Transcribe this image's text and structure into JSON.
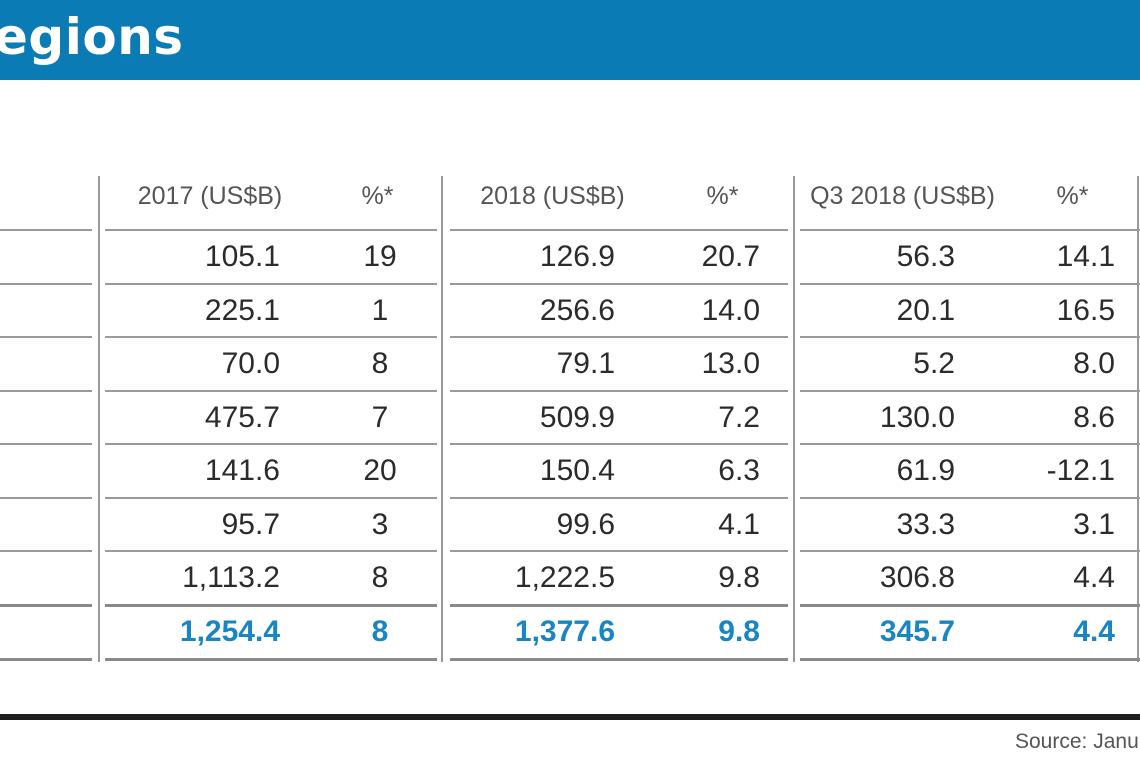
{
  "title": "egions",
  "headers": [
    "2017 (US$B)",
    "%*",
    "2018 (US$B)",
    "%*",
    "Q3 2018 (US$B)",
    "%*"
  ],
  "rows": [
    [
      "105.1",
      "19",
      "126.9",
      "20.7",
      "56.3",
      "14.1"
    ],
    [
      "225.1",
      "1",
      "256.6",
      "14.0",
      "20.1",
      "16.5"
    ],
    [
      "70.0",
      "8",
      "79.1",
      "13.0",
      "5.2",
      "8.0"
    ],
    [
      "475.7",
      "7",
      "509.9",
      "7.2",
      "130.0",
      "8.6"
    ],
    [
      "141.6",
      "20",
      "150.4",
      "6.3",
      "61.9",
      "-12.1"
    ],
    [
      "95.7",
      "3",
      "99.6",
      "4.1",
      "33.3",
      "3.1"
    ],
    [
      "1,113.2",
      "8",
      "1,222.5",
      "9.8",
      "306.8",
      "4.4"
    ]
  ],
  "total": [
    "1,254.4",
    "8",
    "1,377.6",
    "9.8",
    "345.7",
    "4.4"
  ],
  "source": "Source: Janu",
  "colors": {
    "banner": "#0a7bb5",
    "total_text": "#1786c3"
  }
}
